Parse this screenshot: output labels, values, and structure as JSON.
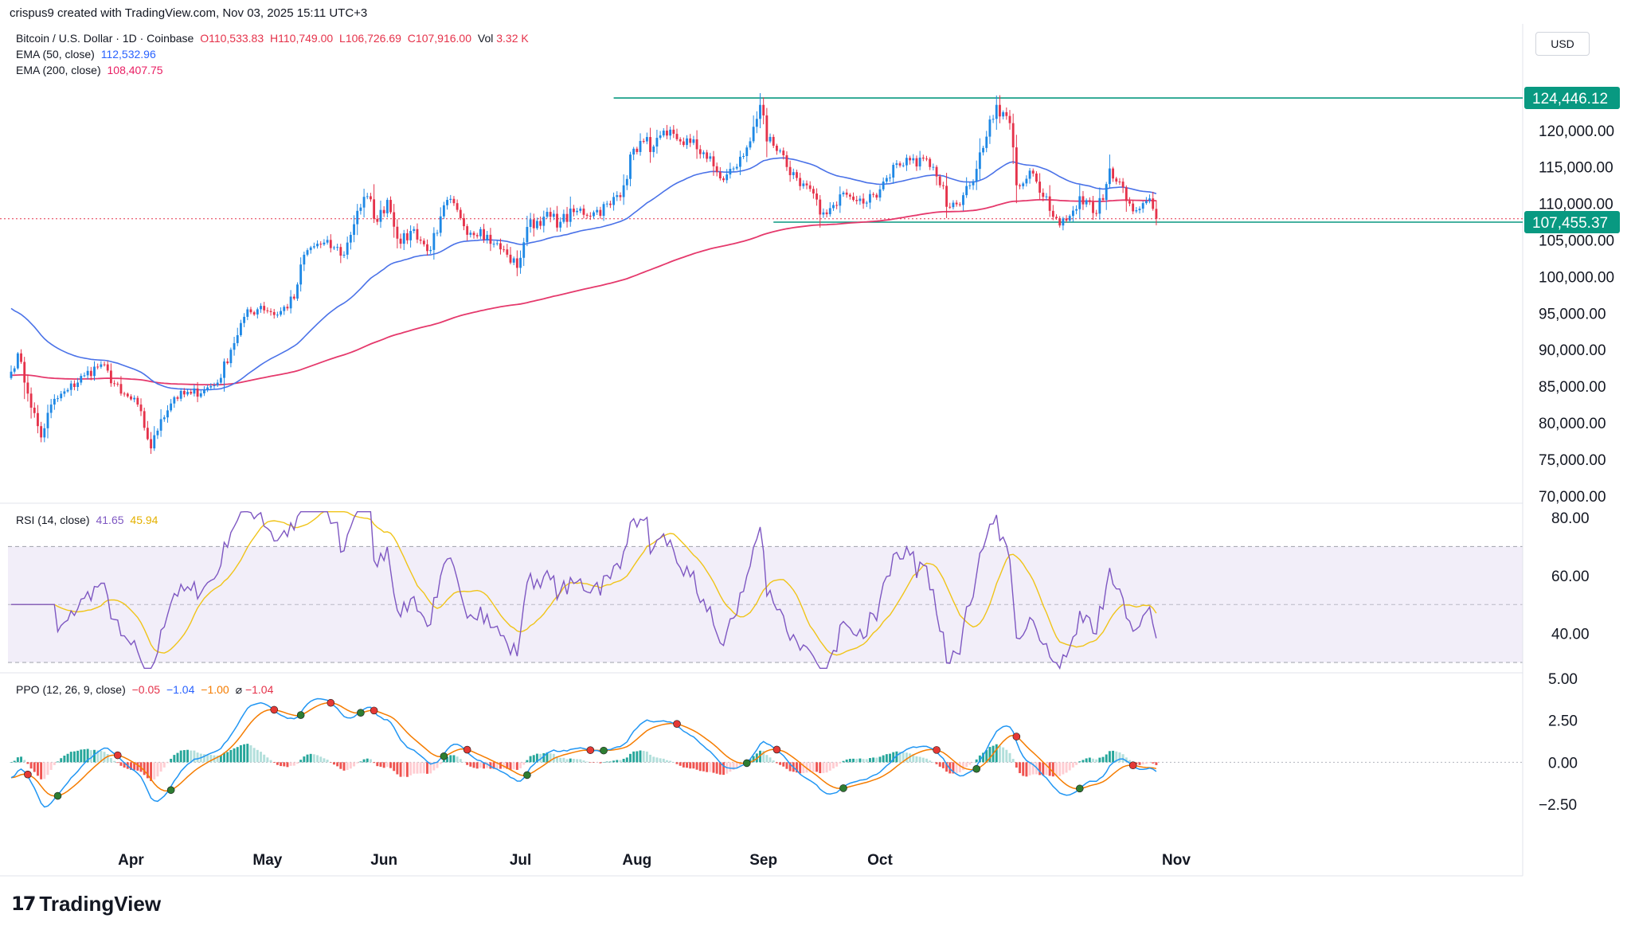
{
  "header": {
    "attribution": "crispus9 created with TradingView.com, Nov 03, 2025 15:11 UTC+3",
    "currency": "USD"
  },
  "legend": {
    "symbol": "Bitcoin / U.S. Dollar · 1D · Coinbase",
    "open": "O110,533.83",
    "high": "H110,749.00",
    "low": "L106,726.69",
    "close": "C107,916.00",
    "vol": "Vol",
    "vol_value": "3.32 K",
    "ema50_label": "EMA (50, close)",
    "ema50_value": "112,532.96",
    "ema200_label": "EMA (200, close)",
    "ema200_value": "108,407.75",
    "rsi_label": "RSI (14, close)",
    "rsi_value": "41.65",
    "rsi_ma_value": "45.94",
    "ppo_label": "PPO (12, 26, 9, close)",
    "ppo_hist": "−0.05",
    "ppo_value": "−1.04",
    "ppo_signal": "−1.00",
    "ppo_extra_symbol": "⌀",
    "ppo_extra": "−1.04"
  },
  "colors": {
    "up": "#1e88e5",
    "down": "#e5324a",
    "ema50": "#4a72e8",
    "ema200": "#e5396c",
    "level": "#089981",
    "rsi": "#7e57c2",
    "rsi_ma": "#f0c419",
    "ppo_line": "#2196f3",
    "ppo_signal": "#f57c00",
    "hist_pos": "#26a69a",
    "hist_neg": "#ef5350"
  },
  "brand": "TradingView",
  "chart_data": {
    "type": "candlestick",
    "price_axis": {
      "ticks": [
        "120,000.00",
        "115,000.00",
        "110,000.00",
        "105,000.00",
        "100,000.00",
        "95,000.00",
        "90,000.00",
        "85,000.00",
        "80,000.00",
        "75,000.00",
        "70,000.00"
      ],
      "ylim": [
        69000,
        127500
      ]
    },
    "levels": [
      {
        "value": 124446.12,
        "label": "124,446.12"
      },
      {
        "value": 107455.37,
        "label": "107,455.37"
      }
    ],
    "months": [
      "Apr",
      "May",
      "Jun",
      "Jul",
      "Aug",
      "Sep",
      "Oct",
      "Nov"
    ],
    "anchors": [
      {
        "t": 0,
        "v": 87000
      },
      {
        "t": 2,
        "v": 89500
      },
      {
        "t": 5,
        "v": 84000
      },
      {
        "t": 9,
        "v": 78000
      },
      {
        "t": 12,
        "v": 82500
      },
      {
        "t": 17,
        "v": 84500
      },
      {
        "t": 22,
        "v": 86500
      },
      {
        "t": 27,
        "v": 88000
      },
      {
        "t": 33,
        "v": 84000
      },
      {
        "t": 38,
        "v": 82500
      },
      {
        "t": 42,
        "v": 76500
      },
      {
        "t": 45,
        "v": 80500
      },
      {
        "t": 49,
        "v": 83500
      },
      {
        "t": 54,
        "v": 84000
      },
      {
        "t": 58,
        "v": 84500
      },
      {
        "t": 62,
        "v": 85500
      },
      {
        "t": 66,
        "v": 90000
      },
      {
        "t": 70,
        "v": 94500
      },
      {
        "t": 75,
        "v": 96000
      },
      {
        "t": 80,
        "v": 94800
      },
      {
        "t": 85,
        "v": 97000
      },
      {
        "t": 88,
        "v": 103000
      },
      {
        "t": 92,
        "v": 104500
      },
      {
        "t": 97,
        "v": 104000
      },
      {
        "t": 100,
        "v": 103000
      },
      {
        "t": 104,
        "v": 109000
      },
      {
        "t": 107,
        "v": 111000
      },
      {
        "t": 110,
        "v": 107500
      },
      {
        "t": 113,
        "v": 110500
      },
      {
        "t": 117,
        "v": 104500
      },
      {
        "t": 121,
        "v": 106500
      },
      {
        "t": 125,
        "v": 103500
      },
      {
        "t": 128,
        "v": 106000
      },
      {
        "t": 131,
        "v": 110500
      },
      {
        "t": 135,
        "v": 108000
      },
      {
        "t": 138,
        "v": 106000
      },
      {
        "t": 141,
        "v": 106500
      },
      {
        "t": 145,
        "v": 104500
      },
      {
        "t": 149,
        "v": 103000
      },
      {
        "t": 152,
        "v": 101200
      },
      {
        "t": 155,
        "v": 106800
      },
      {
        "t": 160,
        "v": 108200
      },
      {
        "t": 165,
        "v": 107500
      },
      {
        "t": 170,
        "v": 109000
      },
      {
        "t": 175,
        "v": 108800
      },
      {
        "t": 180,
        "v": 109800
      },
      {
        "t": 184,
        "v": 112500
      },
      {
        "t": 187,
        "v": 117500
      },
      {
        "t": 190,
        "v": 118500
      },
      {
        "t": 193,
        "v": 117800
      },
      {
        "t": 197,
        "v": 119300
      },
      {
        "t": 200,
        "v": 118800
      },
      {
        "t": 204,
        "v": 118300
      },
      {
        "t": 208,
        "v": 117000
      },
      {
        "t": 212,
        "v": 114300
      },
      {
        "t": 214,
        "v": 113200
      },
      {
        "t": 217,
        "v": 114800
      },
      {
        "t": 220,
        "v": 116500
      },
      {
        "t": 223,
        "v": 120500
      },
      {
        "t": 225,
        "v": 123500
      },
      {
        "t": 227,
        "v": 118500
      },
      {
        "t": 230,
        "v": 117200
      },
      {
        "t": 233,
        "v": 115000
      },
      {
        "t": 236,
        "v": 113500
      },
      {
        "t": 240,
        "v": 112000
      },
      {
        "t": 243,
        "v": 108500
      },
      {
        "t": 247,
        "v": 109800
      },
      {
        "t": 250,
        "v": 111500
      },
      {
        "t": 253,
        "v": 110500
      },
      {
        "t": 256,
        "v": 110000
      },
      {
        "t": 259,
        "v": 111200
      },
      {
        "t": 263,
        "v": 113500
      },
      {
        "t": 266,
        "v": 115500
      },
      {
        "t": 271,
        "v": 116200
      },
      {
        "t": 276,
        "v": 115000
      },
      {
        "t": 279,
        "v": 112500
      },
      {
        "t": 282,
        "v": 109500
      },
      {
        "t": 285,
        "v": 109800
      },
      {
        "t": 288,
        "v": 112500
      },
      {
        "t": 291,
        "v": 117000
      },
      {
        "t": 294,
        "v": 121500
      },
      {
        "t": 296,
        "v": 123500
      },
      {
        "t": 298,
        "v": 122500
      },
      {
        "t": 300,
        "v": 121000
      },
      {
        "t": 302,
        "v": 112500
      },
      {
        "t": 306,
        "v": 114500
      },
      {
        "t": 308,
        "v": 113000
      },
      {
        "t": 312,
        "v": 109000
      },
      {
        "t": 315,
        "v": 107000
      },
      {
        "t": 318,
        "v": 108300
      },
      {
        "t": 321,
        "v": 111000
      },
      {
        "t": 325,
        "v": 108700
      },
      {
        "t": 328,
        "v": 110500
      },
      {
        "t": 330,
        "v": 114800
      },
      {
        "t": 333,
        "v": 113000
      },
      {
        "t": 336,
        "v": 110000
      },
      {
        "t": 339,
        "v": 109300
      },
      {
        "t": 342,
        "v": 110700
      },
      {
        "t": 344,
        "v": 107916
      }
    ],
    "rsi_axis": {
      "ticks": [
        "80.00",
        "60.00",
        "40.00"
      ],
      "upper": 70,
      "middle": 50,
      "lower": 30
    },
    "ppo_axis": {
      "ticks": [
        "5.00",
        "2.50",
        "0.00",
        "−2.50"
      ]
    }
  }
}
